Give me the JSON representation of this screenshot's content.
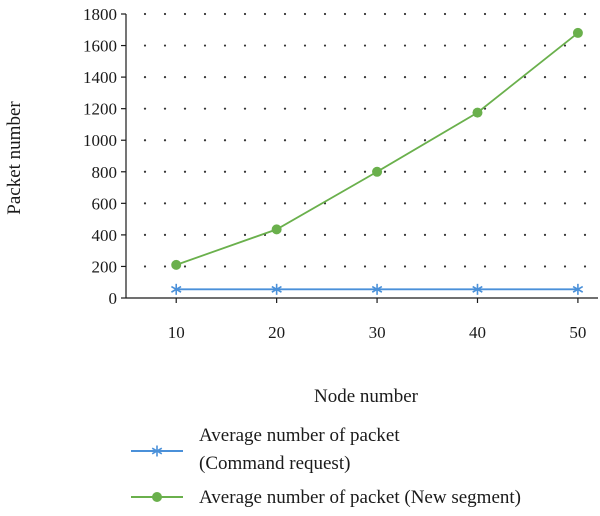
{
  "chart_data": {
    "type": "line",
    "xlabel": "Node number",
    "ylabel": "Packet number",
    "x": [
      10,
      20,
      30,
      40,
      50
    ],
    "xticks": [
      "10",
      "20",
      "30",
      "40",
      "50"
    ],
    "xlim": [
      5,
      52
    ],
    "ylim": [
      0,
      1800
    ],
    "yticks": [
      "0",
      "200",
      "400",
      "600",
      "800",
      "1000",
      "1200",
      "1400",
      "1600",
      "1800"
    ],
    "grid": "dotted",
    "legend_position": "bottom",
    "series": [
      {
        "name_line1": "Average number of packet",
        "name_line2": "(Command request)",
        "values": [
          55,
          55,
          55,
          55,
          55
        ],
        "color": "#4a90d9",
        "marker": "asterisk"
      },
      {
        "name_line1": "Average number of packet (New segment)",
        "values": [
          210,
          435,
          800,
          1175,
          1680
        ],
        "color": "#6ab04c",
        "marker": "circle"
      }
    ]
  }
}
